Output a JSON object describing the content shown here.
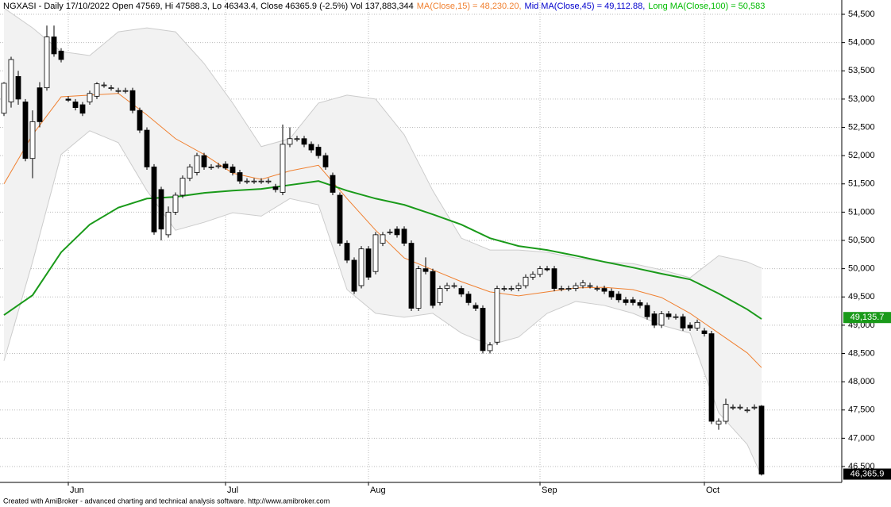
{
  "chart_data": {
    "type": "candlestick",
    "title": "NGXASI - Daily 17/10/2022 Open 47569, Hi 47588.3, Lo 46343.4, Close 46365.9 (-2.5%) Vol 137,883,344",
    "header_items": [
      {
        "text": "MA(Close,15) = 48,230.20,",
        "color": "#f08030"
      },
      {
        "text": "Mid MA(Close,45) = 49,112.88,",
        "color": "#0000cc"
      },
      {
        "text": "Long MA(Close,100) = 50,583",
        "color": "#00bb00"
      }
    ],
    "footer": "Created with AmiBroker - advanced charting and technical analysis software. http://www.amibroker.com",
    "categories": [
      null,
      null,
      null,
      null,
      null,
      null,
      null,
      null,
      null,
      "Jun",
      null,
      null,
      null,
      null,
      null,
      null,
      null,
      null,
      null,
      null,
      null,
      null,
      null,
      null,
      null,
      null,
      null,
      null,
      null,
      null,
      null,
      "Jul",
      null,
      null,
      null,
      null,
      null,
      null,
      null,
      null,
      null,
      null,
      null,
      null,
      null,
      null,
      null,
      null,
      null,
      null,
      null,
      "Aug",
      null,
      null,
      null,
      null,
      null,
      null,
      null,
      null,
      null,
      null,
      null,
      null,
      null,
      null,
      null,
      null,
      null,
      null,
      null,
      null,
      null,
      null,
      null,
      "Sep",
      null,
      null,
      null,
      null,
      null,
      null,
      null,
      null,
      null,
      null,
      null,
      null,
      null,
      null,
      null,
      null,
      null,
      null,
      null,
      null,
      null,
      null,
      "Oct",
      null,
      null,
      null,
      null,
      null,
      null,
      null,
      null
    ],
    "open": [
      52750,
      52950,
      53400,
      52950,
      51950,
      53200,
      53200,
      54100,
      53850,
      53000,
      52950,
      52900,
      52950,
      53050,
      53250,
      53200,
      53150,
      53150,
      53150,
      52800,
      52450,
      51800,
      51400,
      50600,
      51000,
      51300,
      51600,
      51700,
      52000,
      51800,
      51820,
      51850,
      51800,
      51700,
      51550,
      51550,
      51550,
      51550,
      51450,
      51350,
      52200,
      52300,
      52300,
      52200,
      52150,
      52000,
      51650,
      51300,
      50450,
      50150,
      49700,
      50350,
      49950,
      50450,
      50650,
      50700,
      50700,
      50450,
      49300,
      50000,
      49950,
      49400,
      49650,
      49700,
      49650,
      49550,
      49350,
      49300,
      48550,
      48700,
      49650,
      49650,
      49650,
      49700,
      49850,
      49900,
      50000,
      50000,
      49650,
      49650,
      49650,
      49700,
      49700,
      49650,
      49650,
      49600,
      49550,
      49450,
      49450,
      49400,
      49350,
      49200,
      49000,
      49200,
      49150,
      49150,
      49000,
      48950,
      48900,
      48850,
      47250,
      47300,
      47550,
      47550,
      47500,
      47550,
      47569
    ],
    "high": [
      53300,
      53750,
      53500,
      53000,
      52800,
      53300,
      54300,
      54300,
      53900,
      53050,
      53000,
      52950,
      53150,
      53300,
      53300,
      53250,
      53200,
      53200,
      53200,
      52850,
      52500,
      51850,
      51450,
      51100,
      51350,
      51650,
      51850,
      52050,
      52050,
      51850,
      51870,
      51900,
      51850,
      51750,
      51600,
      51600,
      51600,
      51600,
      51500,
      52550,
      52500,
      52350,
      52350,
      52250,
      52200,
      52050,
      51700,
      51350,
      50500,
      50200,
      50400,
      50400,
      50650,
      50650,
      50700,
      50750,
      50750,
      50500,
      50050,
      50200,
      50000,
      49700,
      49750,
      49750,
      49700,
      49600,
      49400,
      49350,
      48700,
      49700,
      49700,
      49700,
      49750,
      49900,
      49950,
      50050,
      50050,
      50050,
      49700,
      49700,
      49750,
      49800,
      49750,
      49700,
      49700,
      49650,
      49600,
      49500,
      49500,
      49450,
      49400,
      49250,
      49250,
      49250,
      49200,
      49200,
      49050,
      49100,
      48950,
      48900,
      47350,
      47700,
      47600,
      47600,
      47550,
      47600,
      47588.3
    ],
    "low": [
      52700,
      52850,
      52900,
      51900,
      51600,
      52500,
      53150,
      53750,
      53650,
      52950,
      52800,
      52700,
      52900,
      53000,
      53200,
      53150,
      53100,
      53100,
      52750,
      52400,
      51750,
      50600,
      50500,
      50550,
      50950,
      51250,
      51550,
      51650,
      51750,
      51750,
      51770,
      51750,
      51650,
      51500,
      51500,
      51500,
      51500,
      51500,
      51350,
      51300,
      52150,
      52250,
      52150,
      52050,
      51950,
      51750,
      51300,
      50400,
      50100,
      49550,
      49650,
      49800,
      49900,
      50400,
      50600,
      50550,
      50400,
      49250,
      49250,
      49900,
      49300,
      49350,
      49600,
      49650,
      49500,
      49350,
      49250,
      48500,
      48500,
      48650,
      49600,
      49600,
      49600,
      49650,
      49800,
      49850,
      49950,
      49600,
      49600,
      49600,
      49600,
      49650,
      49650,
      49600,
      49550,
      49450,
      49400,
      49350,
      49350,
      49300,
      49100,
      48950,
      48950,
      49100,
      49100,
      48900,
      48900,
      48900,
      48800,
      47250,
      47150,
      47250,
      47500,
      47500,
      47450,
      47500,
      46343.4
    ],
    "close": [
      53280,
      53700,
      53000,
      51950,
      52600,
      52600,
      54100,
      53800,
      53700,
      52980,
      52850,
      52750,
      53100,
      53270,
      53250,
      53200,
      53150,
      53150,
      52800,
      52450,
      51800,
      50650,
      50700,
      51000,
      51300,
      51600,
      51800,
      52000,
      51800,
      51800,
      51820,
      51780,
      51700,
      51550,
      51550,
      51550,
      51550,
      51550,
      51400,
      52200,
      52300,
      52300,
      52200,
      52100,
      52000,
      51800,
      51350,
      50450,
      50150,
      49600,
      50350,
      49850,
      50600,
      50600,
      50650,
      50600,
      50450,
      49300,
      50000,
      49950,
      49350,
      49650,
      49700,
      49700,
      49550,
      49400,
      49300,
      48550,
      48650,
      49650,
      49650,
      49650,
      49700,
      49850,
      49900,
      50000,
      49980,
      49650,
      49650,
      49650,
      49700,
      49750,
      49700,
      49650,
      49600,
      49500,
      49450,
      49400,
      49400,
      49350,
      49150,
      49000,
      49200,
      49150,
      49150,
      48950,
      48950,
      49050,
      48850,
      47300,
      47300,
      47600,
      47550,
      47550,
      47500,
      47550,
      46365.9
    ],
    "up_color": "#ffffff",
    "down_color": "#000000",
    "ma_fast": {
      "color": "#f08030",
      "x": [
        0,
        4,
        8,
        12,
        16,
        20,
        24,
        28,
        32,
        36,
        40,
        44,
        48,
        52,
        56,
        60,
        64,
        68,
        72,
        76,
        80,
        84,
        88,
        92,
        96,
        100,
        104,
        106
      ],
      "values": [
        51500,
        52370,
        53040,
        53070,
        53100,
        52720,
        52300,
        52020,
        51690,
        51580,
        51730,
        51830,
        51240,
        50680,
        50190,
        49980,
        49770,
        49590,
        49520,
        49590,
        49660,
        49670,
        49630,
        49490,
        49210,
        48860,
        48510,
        48250
      ]
    },
    "ma_long": {
      "color": "#1a9a1a",
      "x": [
        0,
        4,
        8,
        12,
        16,
        20,
        24,
        28,
        32,
        36,
        40,
        44,
        48,
        52,
        56,
        60,
        64,
        68,
        72,
        76,
        80,
        84,
        88,
        92,
        96,
        100,
        104,
        106
      ],
      "values": [
        49180,
        49530,
        50290,
        50780,
        51080,
        51240,
        51270,
        51340,
        51380,
        51410,
        51480,
        51550,
        51380,
        51240,
        51130,
        50960,
        50780,
        50540,
        50400,
        50330,
        50230,
        50120,
        50020,
        49910,
        49810,
        49560,
        49280,
        49110
      ]
    },
    "bands": {
      "color": "#f2f2f2",
      "x": [
        0,
        4,
        8,
        12,
        16,
        20,
        24,
        28,
        32,
        36,
        40,
        44,
        48,
        52,
        56,
        60,
        64,
        68,
        72,
        76,
        80,
        84,
        88,
        92,
        96,
        100,
        104,
        106
      ],
      "upper": [
        54610,
        54260,
        53840,
        53770,
        54190,
        54260,
        54190,
        53630,
        52930,
        52160,
        52300,
        52930,
        53070,
        53000,
        52370,
        51380,
        50540,
        50330,
        50330,
        50290,
        50190,
        50120,
        50090,
        49980,
        49840,
        50230,
        50120,
        50010
      ],
      "lower": [
        48370,
        50120,
        52020,
        52440,
        52230,
        51380,
        50680,
        50820,
        50990,
        50930,
        51240,
        51130,
        49630,
        49210,
        49140,
        49210,
        48860,
        48650,
        48790,
        49210,
        49420,
        49350,
        49210,
        49000,
        48860,
        47450,
        46890,
        46330
      ]
    },
    "last_value_labels": [
      {
        "value": 49135.7,
        "label": "49,135.7",
        "color": "#1a9a1a"
      },
      {
        "value": 46365.9,
        "label": "46,365.9",
        "color": "#000000"
      }
    ],
    "ylim": [
      46219,
      54753
    ],
    "yticks": [
      {
        "value": 46500,
        "label": "46,500"
      },
      {
        "value": 47000,
        "label": "47,000"
      },
      {
        "value": 47500,
        "label": "47,500"
      },
      {
        "value": 48000,
        "label": "48,000"
      },
      {
        "value": 48500,
        "label": "48,500"
      },
      {
        "value": 49000,
        "label": "49,000"
      },
      {
        "value": 49500,
        "label": "49,500"
      },
      {
        "value": 50000,
        "label": "50,000"
      },
      {
        "value": 50500,
        "label": "50,500"
      },
      {
        "value": 51000,
        "label": "51,000"
      },
      {
        "value": 51500,
        "label": "51,500"
      },
      {
        "value": 52000,
        "label": "52,000"
      },
      {
        "value": 52500,
        "label": "52,500"
      },
      {
        "value": 53000,
        "label": "53,000"
      },
      {
        "value": 53500,
        "label": "53,500"
      },
      {
        "value": 54000,
        "label": "54,000"
      },
      {
        "value": 54500,
        "label": "54,500"
      }
    ],
    "grid": true
  }
}
